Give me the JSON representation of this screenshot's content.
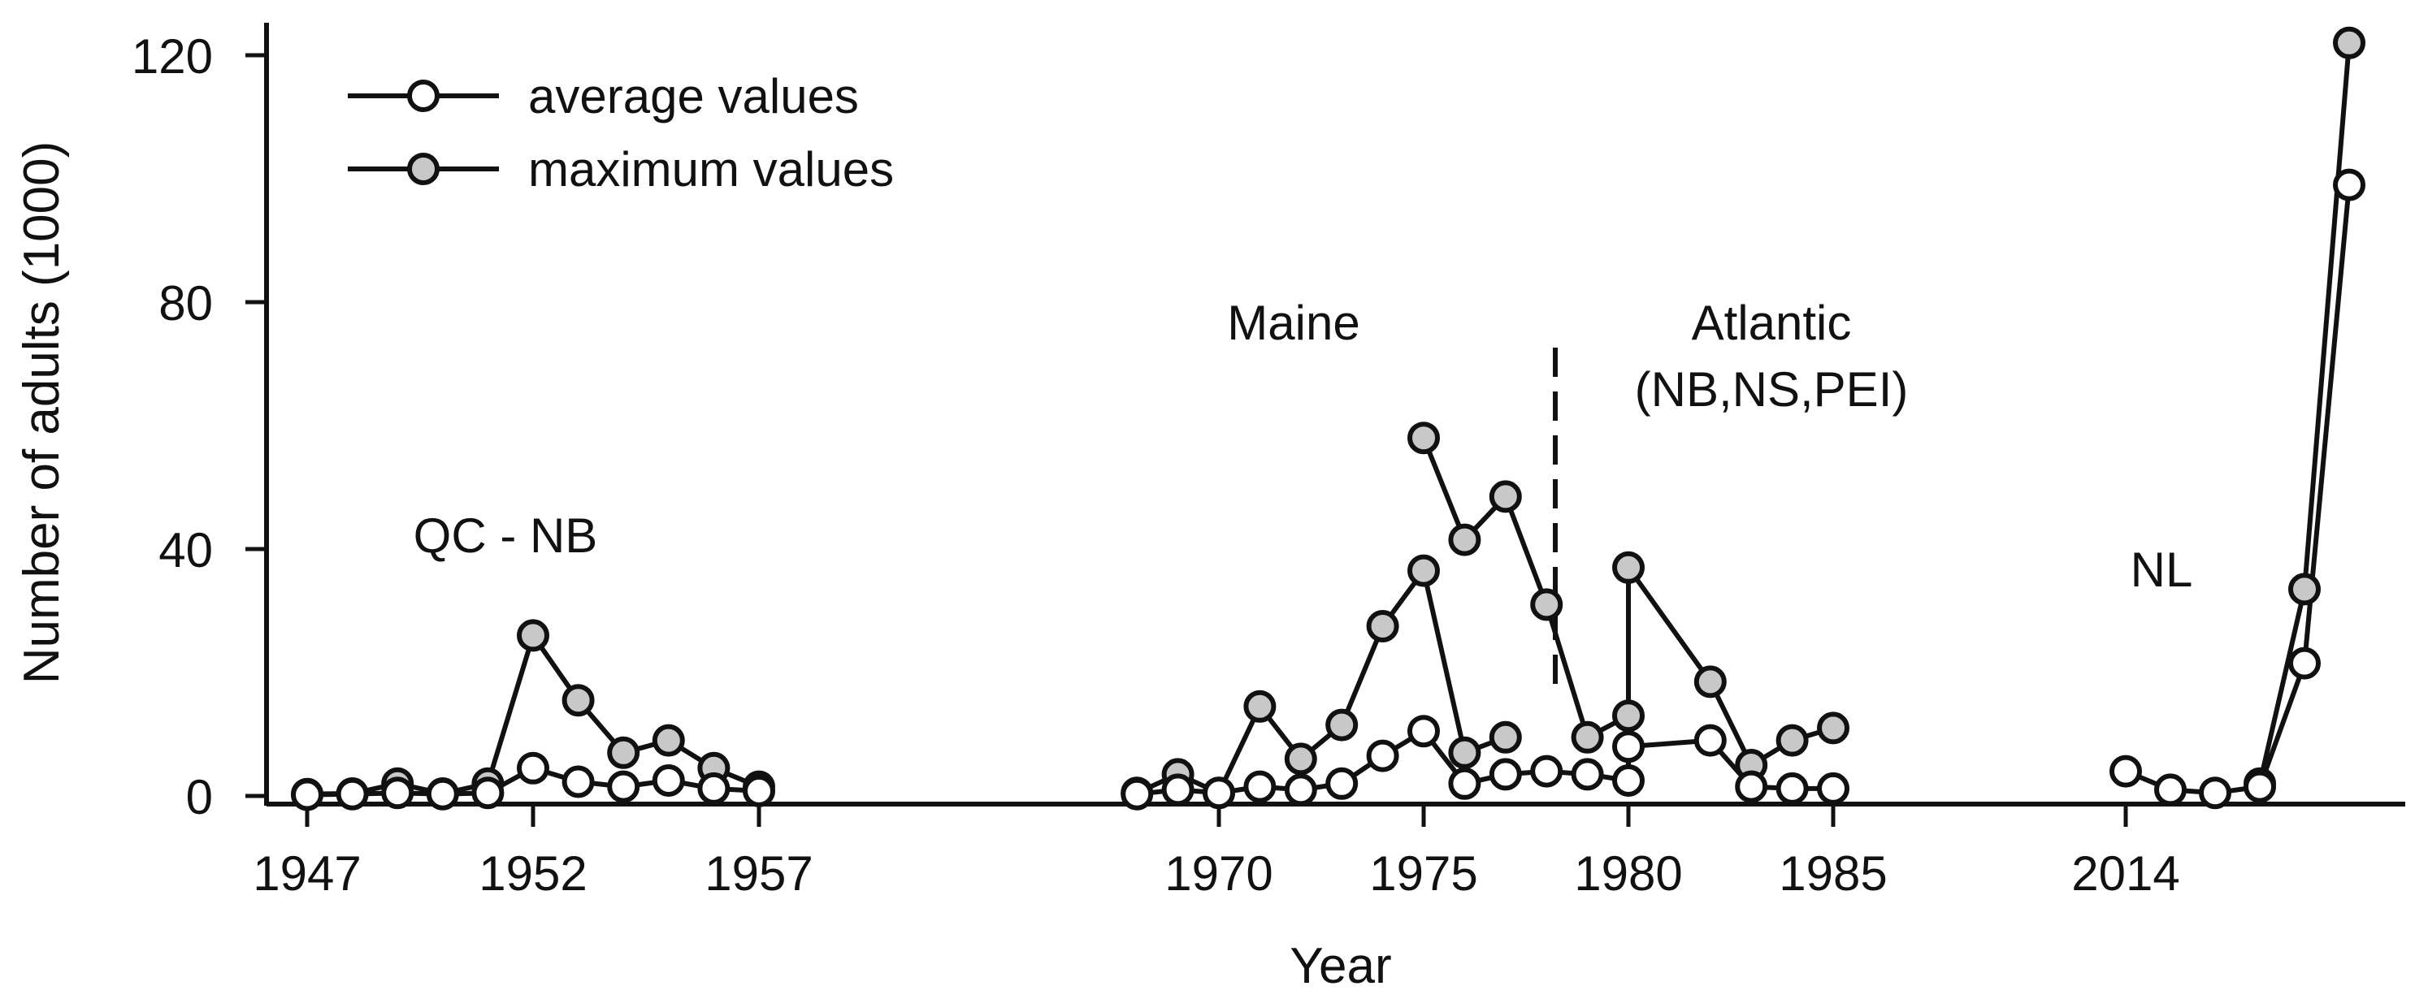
{
  "chart_data": {
    "type": "line",
    "xlabel": "Year",
    "ylabel": "Number of adults (1000)",
    "ylim": [
      0,
      125
    ],
    "y_ticks": [
      "0",
      "40",
      "80",
      "120"
    ],
    "x_ticks": [
      "1947",
      "1952",
      "1957",
      "1970",
      "1975",
      "1980",
      "1985",
      "2014"
    ],
    "legend_position": "top-left",
    "grid": false,
    "colors": {
      "average": "#ffffff",
      "maximum": "#c8c8c8",
      "line": "#111111"
    },
    "legend": [
      {
        "label": "average values",
        "series": "average"
      },
      {
        "label": "maximum values",
        "series": "maximum"
      }
    ],
    "region_labels": [
      "QC - NB",
      "Maine",
      "Atlantic",
      "(NB,NS,PEI)",
      "NL"
    ],
    "series": [
      {
        "name": "average values",
        "segments": [
          {
            "points": [
              [
                1947,
                0.2
              ],
              [
                1948,
                0.3
              ],
              [
                1949,
                0.5
              ],
              [
                1950,
                0.3
              ],
              [
                1951,
                0.5
              ],
              [
                1952,
                4.5
              ],
              [
                1953,
                2.3
              ],
              [
                1954,
                1.5
              ],
              [
                1955,
                2.5
              ],
              [
                1956,
                1.2
              ],
              [
                1957,
                0.8
              ]
            ]
          },
          {
            "points": [
              [
                1968,
                0.3
              ],
              [
                1969,
                1
              ],
              [
                1970,
                0.5
              ],
              [
                1971,
                1.5
              ],
              [
                1972,
                1.0
              ],
              [
                1973,
                2.0
              ],
              [
                1974,
                6.5
              ],
              [
                1975,
                10.5
              ],
              [
                1976,
                2.0
              ],
              [
                1977,
                3.5
              ],
              [
                1978,
                4.0
              ],
              [
                1979,
                3.5
              ],
              [
                1980,
                2.5
              ],
              [
                1980,
                8.0
              ],
              [
                1982,
                9.0
              ],
              [
                1983,
                1.5
              ],
              [
                1984,
                1.2
              ],
              [
                1985,
                1.2
              ]
            ]
          },
          {
            "points": [
              [
                2014,
                4.0
              ],
              [
                2015,
                1.0
              ],
              [
                2016,
                0.5
              ],
              [
                2017,
                1.5
              ],
              [
                2018,
                21.5
              ],
              [
                2019,
                99
              ]
            ]
          }
        ]
      },
      {
        "name": "maximum values",
        "segments": [
          {
            "points": [
              [
                1947,
                0.3
              ],
              [
                1948,
                0.4
              ],
              [
                1949,
                2.0
              ],
              [
                1950,
                0.4
              ],
              [
                1951,
                2.0
              ],
              [
                1952,
                26
              ],
              [
                1953,
                15.5
              ],
              [
                1954,
                7.0
              ],
              [
                1955,
                9.0
              ],
              [
                1956,
                4.5
              ],
              [
                1957,
                1.5
              ]
            ]
          },
          {
            "points": [
              [
                1968,
                0.5
              ],
              [
                1969,
                3.5
              ],
              [
                1970,
                0.5
              ],
              [
                1971,
                14.5
              ],
              [
                1972,
                6.0
              ],
              [
                1973,
                11.5
              ],
              [
                1974,
                27.5
              ],
              [
                1975,
                36.5
              ],
              [
                1976,
                7.0
              ],
              [
                1977,
                9.5
              ]
            ]
          },
          {
            "points": [
              [
                1975,
                58
              ],
              [
                1976,
                41.5
              ],
              [
                1977,
                48.5
              ],
              [
                1978,
                31
              ],
              [
                1979,
                9.5
              ],
              [
                1980,
                13
              ],
              [
                1980,
                37
              ],
              [
                1982,
                18.5
              ],
              [
                1983,
                5.0
              ],
              [
                1984,
                9.0
              ],
              [
                1985,
                11
              ]
            ]
          },
          {
            "points": [
              [
                2017,
                2.0
              ],
              [
                2018,
                33.5
              ],
              [
                2019,
                122
              ]
            ]
          }
        ]
      }
    ]
  }
}
